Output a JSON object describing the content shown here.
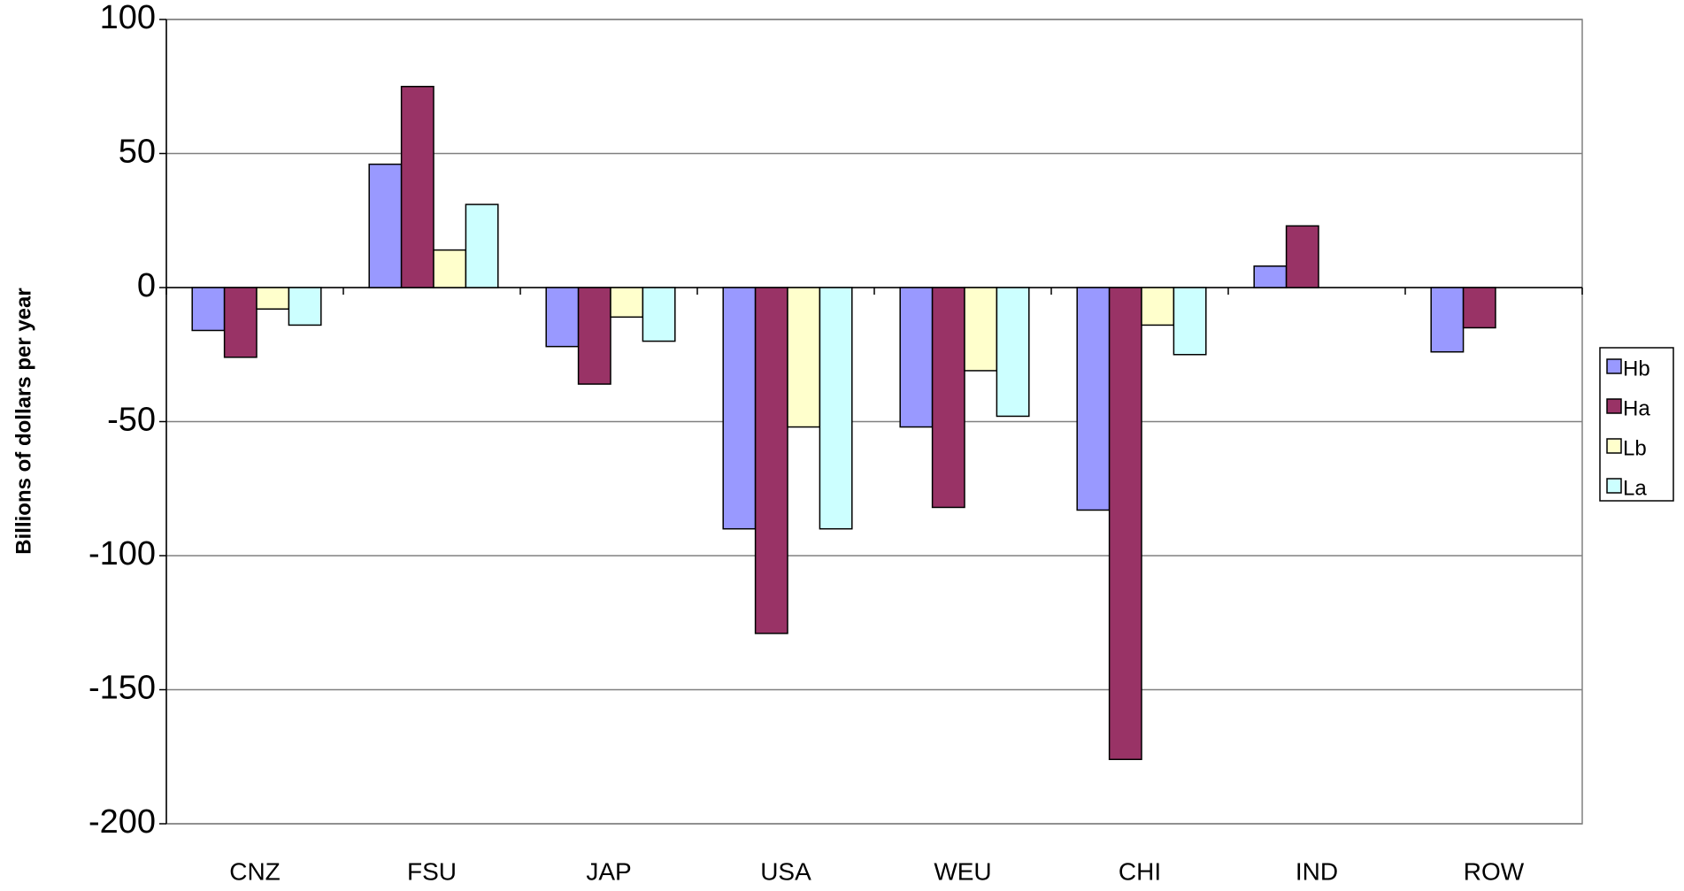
{
  "chart_data": {
    "type": "bar",
    "y_label": "Billions of dollars per year",
    "categories": [
      "CNZ",
      "FSU",
      "JAP",
      "USA",
      "WEU",
      "CHI",
      "IND",
      "ROW"
    ],
    "series": [
      {
        "name": "Hb",
        "color": "#9999ff",
        "values": [
          -16,
          46,
          -22,
          -90,
          -52,
          -83,
          8,
          -24
        ]
      },
      {
        "name": "Ha",
        "color": "#993366",
        "values": [
          -26,
          75,
          -36,
          -129,
          -82,
          -176,
          23,
          -15
        ]
      },
      {
        "name": "Lb",
        "color": "#ffffcc",
        "values": [
          -8,
          14,
          -11,
          -52,
          -31,
          -14,
          null,
          null
        ]
      },
      {
        "name": "La",
        "color": "#ccffff",
        "values": [
          -14,
          31,
          -20,
          -90,
          -48,
          -25,
          null,
          null
        ]
      }
    ],
    "ylim": [
      -200,
      100
    ],
    "yticks": [
      -200,
      -150,
      -100,
      -50,
      0,
      50,
      100
    ],
    "grid": true
  }
}
